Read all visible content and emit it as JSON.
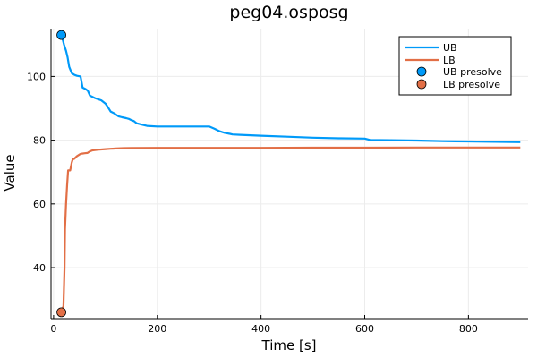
{
  "chart_data": {
    "type": "line",
    "title": "peg04.osposg",
    "xlabel": "Time [s]",
    "ylabel": "Value",
    "xlim": [
      -5,
      915
    ],
    "ylim": [
      24,
      115
    ],
    "xticks": [
      0,
      200,
      400,
      600,
      800
    ],
    "yticks": [
      40,
      60,
      80,
      100
    ],
    "grid": true,
    "legend_position": "top-right",
    "series": [
      {
        "name": "UB",
        "kind": "line",
        "color": "#009af9",
        "x": [
          15,
          17,
          20,
          24,
          27,
          30,
          35,
          40,
          45,
          52,
          56,
          62,
          66,
          70,
          80,
          92,
          100,
          103,
          110,
          117,
          125,
          132,
          140,
          145,
          150,
          155,
          160,
          170,
          180,
          200,
          240,
          280,
          300,
          310,
          320,
          330,
          340,
          345,
          360,
          400,
          450,
          500,
          550,
          600,
          610,
          650,
          700,
          750,
          800,
          850,
          900
        ],
        "y": [
          112.5,
          112,
          110,
          108,
          106,
          103,
          101,
          100.5,
          100.2,
          100,
          96.5,
          96,
          95.5,
          94,
          93.2,
          92.5,
          91.5,
          90.8,
          89,
          88.4,
          87.5,
          87.2,
          86.9,
          86.7,
          86.3,
          86,
          85.3,
          84.9,
          84.5,
          84.3,
          84.3,
          84.3,
          84.3,
          83.6,
          82.8,
          82.3,
          82,
          81.8,
          81.7,
          81.4,
          81.1,
          80.8,
          80.6,
          80.5,
          80.1,
          80,
          79.9,
          79.7,
          79.6,
          79.5,
          79.4
        ]
      },
      {
        "name": "LB",
        "kind": "line",
        "color": "#e26f46",
        "x": [
          15,
          19,
          21,
          22,
          23,
          24,
          26,
          28,
          30,
          32,
          35,
          37,
          40,
          42,
          45,
          50,
          52,
          55,
          60,
          65,
          70,
          75,
          80,
          85,
          100,
          110,
          120,
          135,
          150,
          200,
          300,
          400,
          500,
          600,
          700,
          800,
          900
        ],
        "y": [
          26,
          28,
          40,
          52,
          56,
          60,
          66,
          70.5,
          70.5,
          70.5,
          73,
          74,
          74.2,
          74.5,
          75,
          75.5,
          75.7,
          75.8,
          75.9,
          76,
          76.5,
          76.8,
          76.9,
          77,
          77.2,
          77.3,
          77.4,
          77.5,
          77.55,
          77.6,
          77.6,
          77.6,
          77.65,
          77.65,
          77.7,
          77.7,
          77.7
        ]
      },
      {
        "name": "UB presolve",
        "kind": "scatter",
        "color": "#009af9",
        "x": [
          15
        ],
        "y": [
          113
        ]
      },
      {
        "name": "LB presolve",
        "kind": "scatter",
        "color": "#e26f46",
        "x": [
          15
        ],
        "y": [
          26
        ]
      }
    ]
  }
}
